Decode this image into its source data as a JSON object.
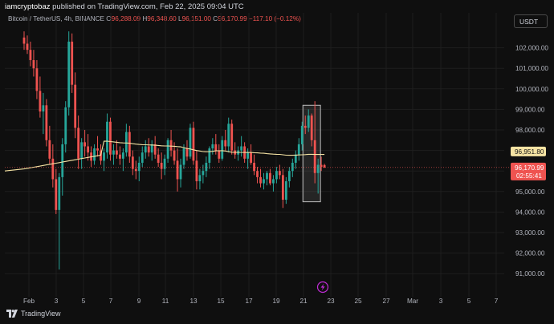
{
  "header": {
    "author": "iamcryptobaz",
    "published": "published on TradingView.com, Feb 22, 2025 09:04 UTC"
  },
  "legend": {
    "symbol": "Bitcoin / TetherUS, 4h, BINANCE",
    "o_label": "O",
    "o_value": "96,288.09",
    "h_label": "H",
    "h_value": "96,348.60",
    "l_label": "L",
    "l_value": "96,151.00",
    "c_label": "C",
    "c_value": "96,170.99",
    "change": "−117.10 (−0.12%)"
  },
  "currency_button": "USDT",
  "price_labels": {
    "ma_value": "96,951.80",
    "last_price": "96,170.99",
    "countdown": "02:55:41"
  },
  "footer": {
    "brand": "TradingView"
  },
  "colors": {
    "background": "#0f0f0f",
    "up": "#26a69a",
    "down": "#ef5350",
    "ma": "#f5e3a3",
    "grid": "#1e1e1e"
  },
  "chart_data": {
    "type": "candlestick",
    "y_ticks": [
      "102,000.00",
      "101,000.00",
      "100,000.00",
      "99,000.00",
      "98,000.00",
      "97,000.00",
      "96,000.00",
      "95,000.00",
      "94,000.00",
      "93,000.00",
      "92,000.00",
      "91,000.00"
    ],
    "ylim": [
      90300,
      103700
    ],
    "x_ticks": [
      "Feb",
      "3",
      "5",
      "7",
      "9",
      "11",
      "13",
      "15",
      "17",
      "19",
      "21",
      "23",
      "25",
      "27",
      "Mar",
      "3",
      "5",
      "7"
    ],
    "candles": [
      [
        102500,
        102800,
        101900,
        102200
      ],
      [
        102200,
        102600,
        101700,
        101900
      ],
      [
        101900,
        102300,
        101100,
        101400
      ],
      [
        101400,
        101900,
        100600,
        101000
      ],
      [
        101000,
        101400,
        99500,
        99900
      ],
      [
        99900,
        100600,
        98600,
        98900
      ],
      [
        98900,
        99800,
        97800,
        99200
      ],
      [
        99200,
        99500,
        97200,
        97500
      ],
      [
        97500,
        98200,
        96300,
        96600
      ],
      [
        96600,
        97300,
        95200,
        95600
      ],
      [
        95600,
        96100,
        93900,
        94100
      ],
      [
        94100,
        95900,
        91200,
        95700
      ],
      [
        95700,
        97600,
        94800,
        97300
      ],
      [
        97300,
        99400,
        96900,
        99100
      ],
      [
        99100,
        102800,
        98700,
        102300
      ],
      [
        102300,
        102700,
        99800,
        100200
      ],
      [
        100200,
        100800,
        97600,
        98100
      ],
      [
        98100,
        98700,
        96100,
        96600
      ],
      [
        96600,
        97600,
        96100,
        97400
      ],
      [
        97400,
        98000,
        96700,
        97200
      ],
      [
        97200,
        97800,
        96500,
        96900
      ],
      [
        96900,
        97200,
        96200,
        96500
      ],
      [
        96500,
        97300,
        96300,
        97100
      ],
      [
        97100,
        97700,
        96700,
        97000
      ],
      [
        97000,
        97300,
        96300,
        96500
      ],
      [
        96500,
        97100,
        96000,
        96900
      ],
      [
        96900,
        98800,
        96600,
        98400
      ],
      [
        98400,
        98600,
        96500,
        96800
      ],
      [
        96800,
        97300,
        96300,
        97000
      ],
      [
        97000,
        97500,
        96600,
        96800
      ],
      [
        96800,
        97200,
        96300,
        96600
      ],
      [
        96600,
        97100,
        96000,
        96900
      ],
      [
        96900,
        98300,
        96700,
        97900
      ],
      [
        97900,
        98200,
        96400,
        96700
      ],
      [
        96700,
        97000,
        95800,
        96100
      ],
      [
        96100,
        96500,
        95600,
        96000
      ],
      [
        96000,
        96700,
        95500,
        96400
      ],
      [
        96400,
        97200,
        96200,
        96900
      ],
      [
        96900,
        97500,
        96600,
        97200
      ],
      [
        97200,
        97600,
        96700,
        96900
      ],
      [
        96900,
        97500,
        96500,
        97300
      ],
      [
        97300,
        97700,
        96600,
        96800
      ],
      [
        96800,
        97100,
        96200,
        96400
      ],
      [
        96400,
        96900,
        95600,
        96100
      ],
      [
        96100,
        96800,
        95800,
        96600
      ],
      [
        96600,
        97600,
        96400,
        97500
      ],
      [
        97500,
        98000,
        96700,
        97000
      ],
      [
        97000,
        97400,
        96300,
        96500
      ],
      [
        96500,
        97100,
        95000,
        95600
      ],
      [
        95600,
        96600,
        95200,
        96300
      ],
      [
        96300,
        97300,
        96100,
        97100
      ],
      [
        97100,
        97500,
        96500,
        96700
      ],
      [
        96700,
        98300,
        96600,
        98100
      ],
      [
        98100,
        98400,
        96300,
        96500
      ],
      [
        96500,
        97000,
        95100,
        95500
      ],
      [
        95500,
        96100,
        95100,
        95800
      ],
      [
        95800,
        96300,
        95400,
        96000
      ],
      [
        96000,
        96700,
        95700,
        96400
      ],
      [
        96400,
        97200,
        96100,
        97100
      ],
      [
        97100,
        97600,
        96800,
        97300
      ],
      [
        97300,
        97800,
        96800,
        97000
      ],
      [
        97000,
        97300,
        96400,
        96600
      ],
      [
        96600,
        97700,
        96500,
        97500
      ],
      [
        97500,
        98000,
        97000,
        97200
      ],
      [
        97200,
        98600,
        96900,
        98300
      ],
      [
        98300,
        98500,
        96800,
        97000
      ],
      [
        97000,
        97400,
        96600,
        96800
      ],
      [
        96800,
        97200,
        96500,
        97000
      ],
      [
        97000,
        97700,
        96700,
        97200
      ],
      [
        97200,
        97400,
        96400,
        96600
      ],
      [
        96600,
        97100,
        96100,
        96900
      ],
      [
        96900,
        97300,
        96300,
        96400
      ],
      [
        96400,
        96800,
        95800,
        96000
      ],
      [
        96000,
        96200,
        95400,
        95700
      ],
      [
        95700,
        96100,
        95200,
        95400
      ],
      [
        95400,
        95900,
        95100,
        95600
      ],
      [
        95600,
        96000,
        95300,
        95900
      ],
      [
        95900,
        96100,
        95300,
        95400
      ],
      [
        95400,
        95800,
        95000,
        95600
      ],
      [
        95600,
        96200,
        95400,
        96000
      ],
      [
        96000,
        96300,
        95600,
        95800
      ],
      [
        95800,
        96100,
        94200,
        94600
      ],
      [
        94600,
        95700,
        94400,
        95500
      ],
      [
        95500,
        96200,
        95200,
        96000
      ],
      [
        96000,
        96600,
        95700,
        96400
      ],
      [
        96400,
        97000,
        96100,
        96800
      ],
      [
        96800,
        97600,
        96500,
        97300
      ],
      [
        97300,
        98400,
        97000,
        98200
      ],
      [
        98200,
        98700,
        97800,
        98100
      ],
      [
        98100,
        99000,
        97900,
        98700
      ],
      [
        98700,
        98800,
        97200,
        97500
      ],
      [
        97500,
        99400,
        95400,
        95900
      ],
      [
        95900,
        96600,
        94900,
        96300
      ],
      [
        96300,
        96700,
        96000,
        96200
      ],
      [
        96288.09,
        96348.6,
        96151,
        96170.99
      ]
    ],
    "moving_average": {
      "value_at_last": 96951.8
    },
    "highlight_box": {
      "x_from_candle": 88,
      "x_to_candle": 92,
      "y_low": 94500,
      "y_high": 99200
    }
  }
}
